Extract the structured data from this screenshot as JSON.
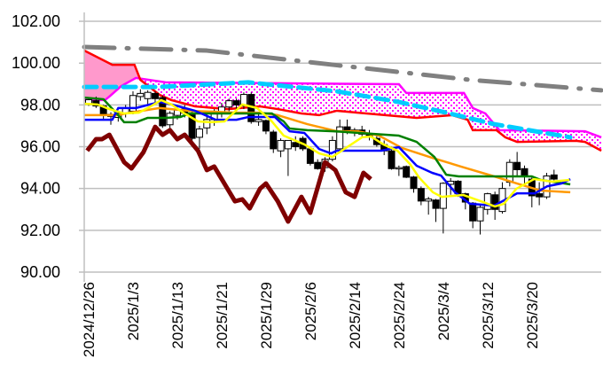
{
  "chart_data": {
    "type": "candlestick",
    "title": "",
    "xlabel": "",
    "ylabel": "",
    "ylim": [
      90,
      102
    ],
    "xlim_index": [
      -0.6,
      69.4
    ],
    "grid": true,
    "y_ticks": [
      "90.00",
      "92.00",
      "94.00",
      "96.00",
      "98.00",
      "100.00",
      "102.00"
    ],
    "y_tick_values": [
      90,
      92,
      94,
      96,
      98,
      100,
      102
    ],
    "x_ticks": [
      {
        "index": 0,
        "label": "2024/12/26"
      },
      {
        "index": 6,
        "label": "2025/1/3"
      },
      {
        "index": 12,
        "label": "2025/1/13"
      },
      {
        "index": 18,
        "label": "2025/1/21"
      },
      {
        "index": 24,
        "label": "2025/1/29"
      },
      {
        "index": 30,
        "label": "2025/2/6"
      },
      {
        "index": 36,
        "label": "2025/2/14"
      },
      {
        "index": 42,
        "label": "2025/2/24"
      },
      {
        "index": 48,
        "label": "2025/3/4"
      },
      {
        "index": 54,
        "label": "2025/3/12"
      },
      {
        "index": 60,
        "label": "2025/3/20"
      }
    ],
    "candles_ohlc": [
      [
        98.05,
        98.35,
        97.95,
        98.25
      ],
      [
        98.2,
        98.4,
        97.85,
        97.95
      ],
      [
        97.95,
        98.0,
        97.3,
        97.5
      ],
      [
        97.45,
        97.65,
        97.05,
        97.55
      ],
      [
        97.4,
        97.7,
        97.2,
        97.6
      ],
      [
        97.6,
        98.0,
        97.4,
        97.85
      ],
      [
        97.7,
        98.65,
        97.55,
        98.45
      ],
      [
        98.4,
        98.75,
        98.2,
        98.55
      ],
      [
        98.3,
        98.7,
        98.0,
        98.6
      ],
      [
        98.55,
        98.65,
        98.1,
        98.3
      ],
      [
        98.35,
        98.45,
        96.9,
        97.0
      ],
      [
        97.05,
        97.7,
        96.8,
        97.6
      ],
      [
        97.5,
        97.9,
        97.3,
        97.75
      ],
      [
        97.8,
        98.0,
        97.4,
        97.6
      ],
      [
        97.6,
        97.7,
        96.2,
        96.4
      ],
      [
        96.45,
        97.0,
        95.9,
        96.85
      ],
      [
        96.9,
        97.6,
        96.6,
        97.3
      ],
      [
        97.3,
        97.8,
        97.0,
        97.7
      ],
      [
        97.6,
        98.1,
        97.4,
        97.9
      ],
      [
        97.9,
        98.3,
        97.7,
        98.2
      ],
      [
        98.2,
        98.3,
        97.8,
        98.0
      ],
      [
        97.95,
        98.6,
        97.8,
        98.5
      ],
      [
        98.5,
        98.6,
        97.1,
        97.2
      ],
      [
        97.2,
        97.6,
        97.0,
        97.3
      ],
      [
        97.25,
        97.3,
        96.6,
        96.75
      ],
      [
        96.7,
        96.8,
        95.7,
        95.9
      ],
      [
        95.8,
        96.4,
        95.5,
        96.3
      ],
      [
        95.9,
        96.3,
        94.6,
        96.3
      ],
      [
        96.2,
        96.5,
        95.8,
        96.0
      ],
      [
        96.4,
        96.5,
        95.8,
        95.9
      ],
      [
        95.9,
        96.0,
        95.1,
        95.2
      ],
      [
        95.25,
        95.4,
        94.9,
        94.95
      ],
      [
        95.0,
        95.5,
        94.8,
        95.4
      ],
      [
        95.4,
        96.5,
        95.3,
        96.3
      ],
      [
        95.9,
        97.3,
        95.8,
        96.95
      ],
      [
        96.95,
        97.3,
        96.6,
        96.7
      ],
      [
        96.7,
        96.9,
        96.5,
        96.8
      ],
      [
        96.8,
        97.0,
        96.5,
        96.6
      ],
      [
        96.6,
        96.8,
        96.3,
        96.5
      ],
      [
        96.4,
        96.6,
        96.0,
        96.1
      ],
      [
        96.1,
        96.3,
        95.6,
        95.8
      ],
      [
        95.8,
        96.0,
        94.9,
        94.95
      ],
      [
        94.95,
        95.1,
        94.6,
        95.0
      ],
      [
        95.05,
        95.1,
        94.5,
        94.54
      ],
      [
        94.55,
        94.6,
        93.8,
        94.0
      ],
      [
        94.0,
        94.1,
        93.2,
        93.4
      ],
      [
        93.4,
        93.6,
        92.75,
        93.5
      ],
      [
        93.45,
        93.5,
        92.4,
        93.05
      ],
      [
        93.05,
        94.3,
        91.85,
        94.25
      ],
      [
        94.2,
        94.5,
        93.7,
        94.35
      ],
      [
        94.35,
        94.4,
        93.6,
        93.75
      ],
      [
        93.75,
        93.8,
        93.0,
        93.35
      ],
      [
        93.3,
        93.35,
        92.1,
        92.45
      ],
      [
        92.45,
        93.2,
        91.8,
        93.1
      ],
      [
        93.0,
        93.8,
        92.75,
        93.75
      ],
      [
        93.7,
        93.85,
        92.5,
        93.0
      ],
      [
        92.9,
        94.3,
        92.8,
        94.0
      ],
      [
        94.3,
        95.4,
        94.1,
        95.25
      ],
      [
        95.25,
        95.75,
        94.6,
        94.9
      ],
      [
        94.95,
        95.1,
        94.2,
        94.6
      ],
      [
        94.45,
        94.55,
        93.1,
        93.65
      ],
      [
        93.75,
        94.3,
        93.2,
        93.6
      ],
      [
        93.6,
        94.75,
        93.5,
        94.6
      ],
      [
        94.65,
        94.9,
        94.3,
        94.45
      ]
    ],
    "cloud": {
      "span_red": [
        [
          -0.6,
          100.6
        ],
        [
          3.2,
          99.92
        ],
        [
          6.2,
          99.92
        ],
        [
          7,
          99.2
        ],
        [
          9.6,
          98.48
        ],
        [
          11.2,
          98.23
        ],
        [
          14.4,
          97.93
        ],
        [
          18.8,
          97.8
        ],
        [
          23.2,
          97.93
        ],
        [
          25.6,
          97.8
        ],
        [
          28.8,
          97.59
        ],
        [
          31.2,
          97.51
        ],
        [
          33.6,
          97.72
        ],
        [
          36.4,
          97.63
        ],
        [
          44.4,
          97.38
        ],
        [
          49.2,
          97.51
        ],
        [
          51.3,
          97.29
        ],
        [
          52,
          96.79
        ],
        [
          55.2,
          96.79
        ],
        [
          56.4,
          96.45
        ],
        [
          58,
          96.23
        ],
        [
          66,
          96.28
        ],
        [
          67.2,
          96.23
        ],
        [
          69.4,
          95.81
        ]
      ],
      "span_magenta": [
        [
          -0.6,
          98.23
        ],
        [
          2.2,
          98.23
        ],
        [
          2.8,
          98.4
        ],
        [
          4.4,
          98.9
        ],
        [
          6.4,
          99.29
        ],
        [
          10.4,
          99.08
        ],
        [
          42,
          98.99
        ],
        [
          43,
          98.57
        ],
        [
          50.8,
          98.57
        ],
        [
          52,
          97.85
        ],
        [
          53.7,
          97.59
        ],
        [
          55.6,
          96.79
        ],
        [
          67.2,
          96.74
        ],
        [
          69.4,
          96.45
        ]
      ],
      "bull_fill_color": "#FF99CC",
      "bear_fill_color": "#FF00FF"
    },
    "series": [
      {
        "name": "gray-dashdot-ma",
        "color": "#808080",
        "style": "dashdot",
        "points": [
          [
            -0.6,
            100.77
          ],
          [
            16,
            100.6
          ],
          [
            33.6,
            99.9
          ],
          [
            51.6,
            99.2
          ],
          [
            69.4,
            98.7
          ]
        ]
      },
      {
        "name": "cyan-dashed-ma",
        "color": "#00CCFF",
        "style": "dashed",
        "points": [
          [
            -0.6,
            98.86
          ],
          [
            9.6,
            98.86
          ],
          [
            21.6,
            99.08
          ],
          [
            33.6,
            98.65
          ],
          [
            42,
            98.14
          ],
          [
            48.4,
            97.63
          ],
          [
            54.9,
            97.08
          ],
          [
            65.2,
            96.45
          ]
        ]
      },
      {
        "name": "orange-ma",
        "color": "#FF9900",
        "style": "solid",
        "points": [
          [
            -0.6,
            97.51
          ],
          [
            4,
            97.51
          ],
          [
            5.6,
            97.63
          ],
          [
            9.6,
            97.85
          ],
          [
            13.6,
            97.72
          ],
          [
            20,
            97.63
          ],
          [
            23.2,
            97.63
          ],
          [
            25.6,
            97.51
          ],
          [
            29.6,
            97.08
          ],
          [
            33.6,
            96.74
          ],
          [
            36.4,
            96.74
          ],
          [
            39.3,
            96.53
          ],
          [
            42.4,
            95.94
          ],
          [
            46.5,
            95.47
          ],
          [
            50.4,
            95.05
          ],
          [
            54.9,
            94.58
          ],
          [
            58,
            94.24
          ],
          [
            61.2,
            93.9
          ],
          [
            65.2,
            93.82
          ]
        ]
      },
      {
        "name": "green-kijun",
        "color": "#008000",
        "style": "solid",
        "points": [
          [
            -0.6,
            98.35
          ],
          [
            2,
            98.27
          ],
          [
            4,
            97.51
          ],
          [
            4.8,
            97.17
          ],
          [
            6.4,
            97.17
          ],
          [
            8,
            97.38
          ],
          [
            10.4,
            97.38
          ],
          [
            12.4,
            97.42
          ],
          [
            13.6,
            97.59
          ],
          [
            24.8,
            97.59
          ],
          [
            26.4,
            97.21
          ],
          [
            27.2,
            96.87
          ],
          [
            29.6,
            96.79
          ],
          [
            33.2,
            96.74
          ],
          [
            42,
            96.53
          ],
          [
            44.4,
            96.23
          ],
          [
            46.8,
            95.51
          ],
          [
            48.4,
            94.66
          ],
          [
            50.1,
            94.58
          ],
          [
            60,
            94.58
          ],
          [
            61.2,
            94.41
          ],
          [
            65.2,
            94.2
          ]
        ]
      },
      {
        "name": "blue-tenkan",
        "color": "#0000FF",
        "style": "solid",
        "points": [
          [
            -0.6,
            97.29
          ],
          [
            3.2,
            97.29
          ],
          [
            4,
            97.85
          ],
          [
            6.4,
            97.85
          ],
          [
            9.6,
            98.14
          ],
          [
            10.8,
            98.06
          ],
          [
            14.4,
            97.72
          ],
          [
            17.2,
            97.29
          ],
          [
            20,
            97.29
          ],
          [
            21.6,
            97.42
          ],
          [
            25.2,
            97.42
          ],
          [
            27.2,
            96.74
          ],
          [
            29.2,
            96.66
          ],
          [
            31.2,
            95.89
          ],
          [
            32.8,
            95.68
          ],
          [
            33.6,
            95.81
          ],
          [
            39.6,
            95.81
          ],
          [
            42,
            95.98
          ],
          [
            44.4,
            95.09
          ],
          [
            46.5,
            94.75
          ],
          [
            47.7,
            94.62
          ],
          [
            49.6,
            93.82
          ],
          [
            51.6,
            93.27
          ],
          [
            54.9,
            93.18
          ],
          [
            58,
            93.77
          ],
          [
            60.4,
            93.77
          ],
          [
            62.1,
            94.11
          ],
          [
            64,
            94.24
          ],
          [
            65.2,
            94.45
          ]
        ]
      },
      {
        "name": "yellow-ma",
        "color": "#FFFF00",
        "style": "solid",
        "points": [
          [
            -0.6,
            98.06
          ],
          [
            1.2,
            98.02
          ],
          [
            2.8,
            97.8
          ],
          [
            4.8,
            97.59
          ],
          [
            6.8,
            97.63
          ],
          [
            8.4,
            97.93
          ],
          [
            9.8,
            98.23
          ],
          [
            11.2,
            98.02
          ],
          [
            12.8,
            97.63
          ],
          [
            14.8,
            97.21
          ],
          [
            16.4,
            97.17
          ],
          [
            18.4,
            97.21
          ],
          [
            20.8,
            98.02
          ],
          [
            22.8,
            97.85
          ],
          [
            24.8,
            97.21
          ],
          [
            26.4,
            96.53
          ],
          [
            29.2,
            96.11
          ],
          [
            31.2,
            95.68
          ],
          [
            33,
            95.51
          ],
          [
            34.6,
            95.89
          ],
          [
            37,
            96.45
          ],
          [
            38.2,
            96.49
          ],
          [
            39.9,
            96.11
          ],
          [
            41.8,
            95.81
          ],
          [
            43.5,
            95.17
          ],
          [
            44.7,
            94.54
          ],
          [
            46.6,
            93.82
          ],
          [
            47.8,
            93.6
          ],
          [
            50.7,
            93.69
          ],
          [
            53.1,
            93.39
          ],
          [
            55,
            93.14
          ],
          [
            56.2,
            93.27
          ],
          [
            57.9,
            93.99
          ],
          [
            60.3,
            94.45
          ],
          [
            62.7,
            94.33
          ],
          [
            65.1,
            94.41
          ]
        ]
      },
      {
        "name": "brown-chikou",
        "color": "#7F0000",
        "style": "solid",
        "points": [
          [
            -0.2,
            95.81
          ],
          [
            1,
            96.36
          ],
          [
            1.8,
            96.36
          ],
          [
            2.8,
            96.57
          ],
          [
            4.8,
            95.26
          ],
          [
            5.8,
            94.96
          ],
          [
            7.4,
            95.73
          ],
          [
            9,
            96.95
          ],
          [
            10,
            96.57
          ],
          [
            11,
            96.79
          ],
          [
            12,
            96.36
          ],
          [
            13,
            96.57
          ],
          [
            14.8,
            95.81
          ],
          [
            16,
            94.88
          ],
          [
            17,
            95.05
          ],
          [
            19.8,
            93.39
          ],
          [
            20.8,
            93.48
          ],
          [
            21.8,
            93.05
          ],
          [
            23.2,
            93.99
          ],
          [
            24,
            94.24
          ],
          [
            25.6,
            93.39
          ],
          [
            27,
            92.42
          ],
          [
            28.8,
            93.6
          ],
          [
            30,
            92.84
          ],
          [
            32,
            95.26
          ],
          [
            33.4,
            94.88
          ],
          [
            34.8,
            93.82
          ],
          [
            36,
            93.6
          ],
          [
            37.2,
            94.75
          ],
          [
            38.2,
            94.45
          ]
        ]
      }
    ]
  }
}
